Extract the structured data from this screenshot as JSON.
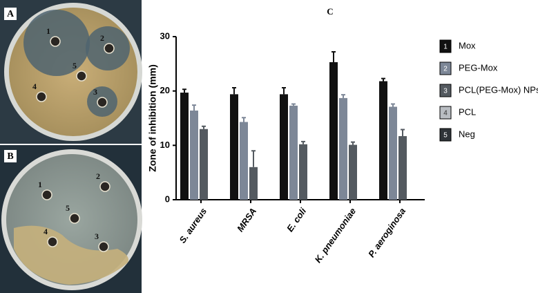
{
  "photos": [
    {
      "label": "A",
      "wells": [
        "1",
        "2",
        "3",
        "4",
        "5"
      ]
    },
    {
      "label": "B",
      "wells": [
        "1",
        "2",
        "3",
        "4",
        "5"
      ]
    }
  ],
  "chart_data": {
    "type": "bar",
    "panel_label": "C",
    "y_label": "Zone of inhibition (mm)",
    "categories": [
      "S. aureus",
      "MRSA",
      "E. coli",
      "K. pneumoniae",
      "P. aeroginosa"
    ],
    "series": [
      {
        "name": "Mox",
        "marker": "1",
        "color": "#111111",
        "values": [
          19.7,
          19.4,
          19.4,
          25.3,
          21.8
        ],
        "errors": [
          0.6,
          1.2,
          1.2,
          1.9,
          0.5
        ]
      },
      {
        "name": "PEG-Mox",
        "marker": "2",
        "color": "#7d8797",
        "values": [
          16.4,
          14.3,
          17.3,
          18.7,
          17.1
        ],
        "errors": [
          1.0,
          0.8,
          0.3,
          0.6,
          0.5
        ]
      },
      {
        "name": "PCL(PEG-Mox) NPs",
        "marker": "3",
        "color": "#545a60",
        "values": [
          13.0,
          6.0,
          10.2,
          10.1,
          11.7
        ],
        "errors": [
          0.5,
          3.0,
          0.5,
          0.5,
          1.2
        ]
      },
      {
        "name": "PCL",
        "marker": "4",
        "color": "#b9bdc2",
        "values": [
          0,
          0,
          0,
          0,
          0
        ]
      },
      {
        "name": "Neg",
        "marker": "5",
        "color": "#2e3338",
        "values": [
          0,
          0,
          0,
          0,
          0
        ]
      }
    ],
    "ylim": [
      0,
      30
    ],
    "yticks": [
      0,
      10,
      20,
      30
    ],
    "legend": "right"
  }
}
